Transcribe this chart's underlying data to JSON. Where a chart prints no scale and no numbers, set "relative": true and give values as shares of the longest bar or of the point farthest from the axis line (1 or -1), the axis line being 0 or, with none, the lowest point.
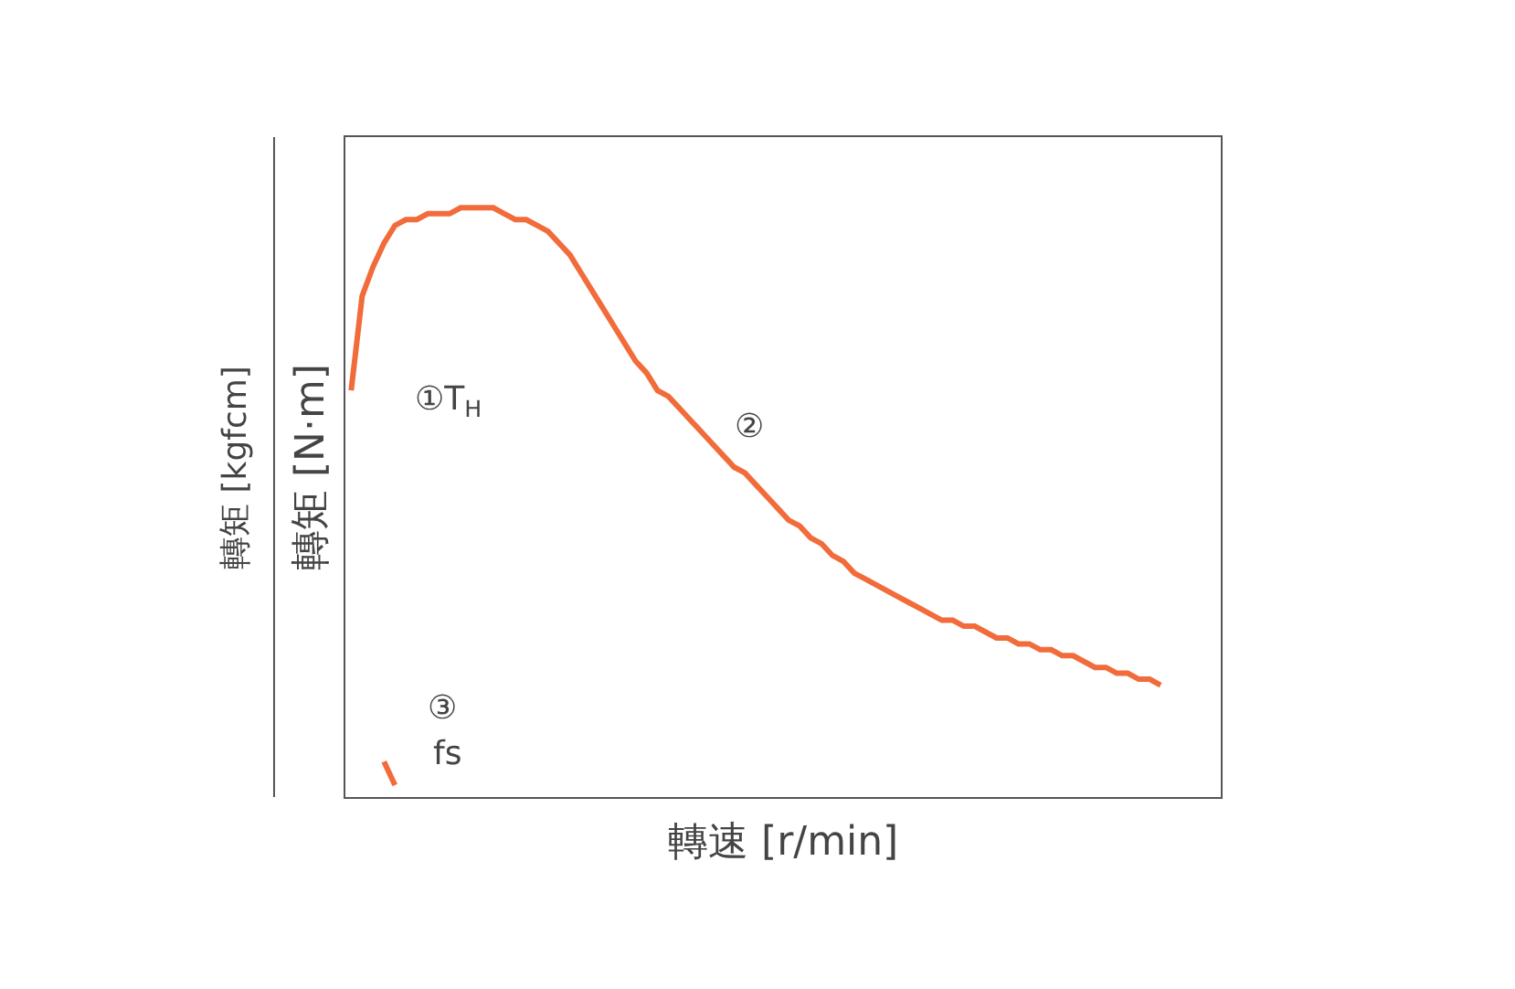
{
  "chart_data": {
    "type": "line",
    "relative": true,
    "xlabel": "轉速 [r/min]",
    "ylabel": "轉矩 [N·m]",
    "y2label": "轉矩 [kgfcm]",
    "categories": [
      null,
      null,
      null,
      null,
      null,
      null,
      null,
      null,
      null,
      null,
      null,
      null,
      null,
      null,
      null,
      null,
      null,
      null,
      null,
      null,
      null,
      null,
      null,
      null,
      null,
      null,
      null,
      null,
      null,
      null,
      null,
      null,
      null,
      null,
      null,
      null,
      null,
      null,
      null,
      null,
      null,
      null,
      null,
      null,
      null,
      null,
      null,
      null,
      null,
      null,
      null,
      null,
      null,
      null,
      null,
      null,
      null,
      null,
      null,
      null,
      null,
      null,
      null,
      null,
      null,
      null,
      null,
      null,
      null,
      null,
      null,
      null,
      null,
      null,
      null,
      null,
      null,
      null,
      null,
      null
    ],
    "series": [
      {
        "color": "#f26b3a",
        "values": [
          0.69,
          0.85,
          0.9,
          0.94,
          0.97,
          0.98,
          0.98,
          0.99,
          0.99,
          0.99,
          1.0,
          1.0,
          1.0,
          1.0,
          0.99,
          0.98,
          0.98,
          0.97,
          0.96,
          0.94,
          0.92,
          0.89,
          0.86,
          0.83,
          0.8,
          0.77,
          0.74,
          0.72,
          0.69,
          0.68,
          0.66,
          0.64,
          0.62,
          0.6,
          0.58,
          0.56,
          0.55,
          0.53,
          0.51,
          0.49,
          0.47,
          0.46,
          0.44,
          0.43,
          0.41,
          0.4,
          0.38,
          0.37,
          0.36,
          0.35,
          0.34,
          0.33,
          0.32,
          0.31,
          0.3,
          0.3,
          0.29,
          0.29,
          0.28,
          0.27,
          0.27,
          0.26,
          0.26,
          0.25,
          0.25,
          0.24,
          0.24,
          0.23,
          0.22,
          0.22,
          0.21,
          0.21,
          0.2,
          0.2,
          0.19,
          null,
          null,
          null,
          null,
          null
        ]
      },
      {
        "color": "#f26b3a",
        "values": [
          null,
          null,
          null,
          0.06,
          0.02,
          null,
          null,
          null,
          null,
          null,
          null,
          null,
          null,
          null,
          null,
          null,
          null,
          null,
          null,
          null,
          null,
          null,
          null,
          null,
          null,
          null,
          null,
          null,
          null,
          null,
          null,
          null,
          null,
          null,
          null,
          null,
          null,
          null,
          null,
          null,
          null,
          null,
          null,
          null,
          null,
          null,
          null,
          null,
          null,
          null,
          null,
          null,
          null,
          null,
          null,
          null,
          null,
          null,
          null,
          null,
          null,
          null,
          null,
          null,
          null,
          null,
          null,
          null,
          null,
          null,
          null,
          null,
          null,
          null,
          null,
          null,
          null,
          null,
          null,
          null
        ]
      }
    ],
    "annotations": [
      "①T$_{H}$",
      "②",
      "③",
      "fs"
    ],
    "marker": "none",
    "line_style": "solid"
  }
}
